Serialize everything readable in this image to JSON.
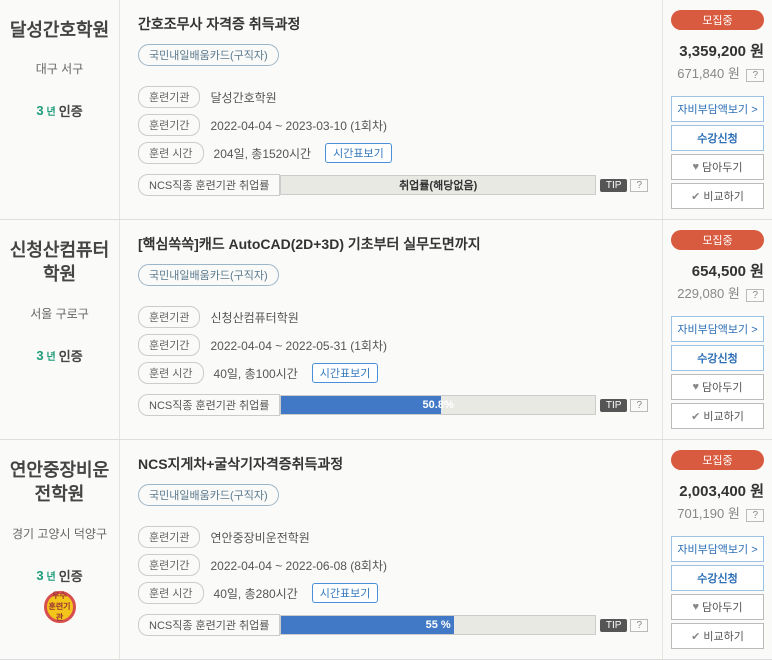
{
  "labels": {
    "inst": "훈련기관",
    "period": "훈련기간",
    "time": "훈련 시간",
    "timeBtn": "시간표보기",
    "ncs": "NCS직종 훈련기관 취업률",
    "tip": "TIP",
    "q": "?",
    "btn_cost": "자비부담액보기 >",
    "btn_apply": "수강신청",
    "btn_save": "담아두기",
    "btn_compare": "비교하기",
    "cert_text": "인증",
    "cert_three": "3",
    "cert_year": "년"
  },
  "cards": [
    {
      "school": "달성간호학원",
      "region": "대구 서구",
      "show_medal": false,
      "title": "간호조무사 자격증 취득과정",
      "tag": "국민내일배움카드(구직자)",
      "inst": "달성간호학원",
      "period": "2022-04-04 ~ 2023-03-10 (1회차)",
      "time": "204일, 총1520시간",
      "ncs_pct": 0,
      "ncs_text": "취업률(해당없음)",
      "ncs_white": false,
      "status": "모집중",
      "price1": "3,359,200 원",
      "price2": "671,840 원"
    },
    {
      "school": "신청산컴퓨터학원",
      "region": "서울 구로구",
      "show_medal": false,
      "title": "[핵심쏙쏙]캐드 AutoCAD(2D+3D) 기초부터 실무도면까지",
      "tag": "국민내일배움카드(구직자)",
      "inst": "신청산컴퓨터학원",
      "period": "2022-04-04 ~ 2022-05-31 (1회차)",
      "time": "40일, 총100시간",
      "ncs_pct": 50.8,
      "ncs_text": "50.8%",
      "ncs_white": true,
      "status": "모집중",
      "price1": "654,500 원",
      "price2": "229,080 원"
    },
    {
      "school": "연안중장비운전학원",
      "region": "경기 고양시 덕양구",
      "show_medal": true,
      "title": "NCS지게차+굴삭기자격증취득과정",
      "tag": "국민내일배움카드(구직자)",
      "inst": "연안중장비운전학원",
      "period": "2022-04-04 ~ 2022-06-08 (8회차)",
      "time": "40일, 총280시간",
      "ncs_pct": 55,
      "ncs_text": "55 %",
      "ncs_white": true,
      "status": "모집중",
      "price1": "2,003,400 원",
      "price2": "701,190 원"
    }
  ]
}
